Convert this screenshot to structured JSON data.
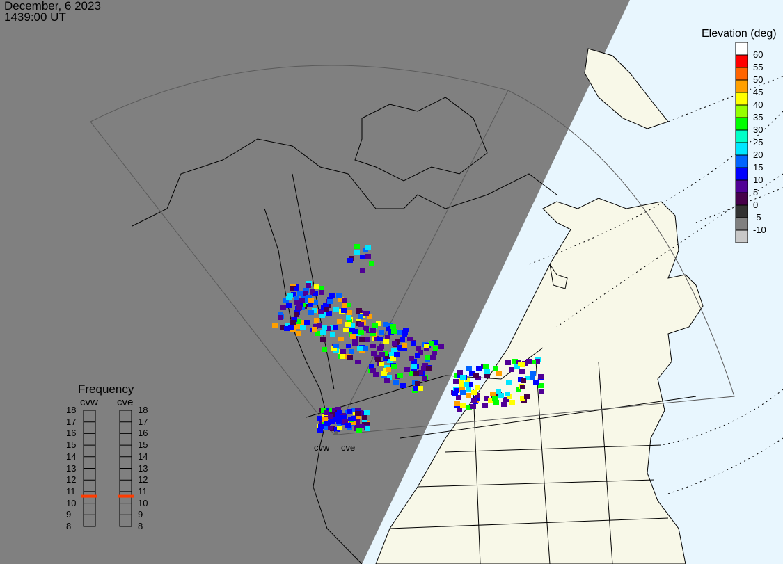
{
  "header": {
    "date": "December, 6 2023",
    "time": "1439:00 UT"
  },
  "colors": {
    "night": "#808080",
    "ocean": "#e8f6fe",
    "land": "#f8f8e8",
    "fov": "#606060"
  },
  "elevation_legend": {
    "title": "Elevation (deg)",
    "bins": [
      {
        "label": "60",
        "color": "#ffffff"
      },
      {
        "label": "55",
        "color": "#ff0000"
      },
      {
        "label": "50",
        "color": "#ff6400"
      },
      {
        "label": "45",
        "color": "#ffa000"
      },
      {
        "label": "40",
        "color": "#ffff00"
      },
      {
        "label": "35",
        "color": "#96ff00"
      },
      {
        "label": "30",
        "color": "#00ff00"
      },
      {
        "label": "25",
        "color": "#00ffc8"
      },
      {
        "label": "20",
        "color": "#00e6ff"
      },
      {
        "label": "15",
        "color": "#0064ff"
      },
      {
        "label": "10",
        "color": "#0000ff"
      },
      {
        "label": "5",
        "color": "#500096"
      },
      {
        "label": "0",
        "color": "#46004b"
      },
      {
        "label": "-5",
        "color": "#323232"
      },
      {
        "label": "-10",
        "color": "#808080"
      },
      {
        "label": "",
        "color": "#c8c8c8"
      }
    ]
  },
  "frequency_panel": {
    "title": "Frequency",
    "ticks": [
      "18",
      "17",
      "16",
      "15",
      "14",
      "13",
      "12",
      "11",
      "10",
      "9",
      "8"
    ],
    "radars": [
      {
        "name": "cvw",
        "frequency_mhz": 10.6
      },
      {
        "name": "cve",
        "frequency_mhz": 10.6
      }
    ],
    "marker_color": "#ff3c00"
  },
  "radar_sites": [
    {
      "name": "cvw"
    },
    {
      "name": "cve"
    }
  ]
}
